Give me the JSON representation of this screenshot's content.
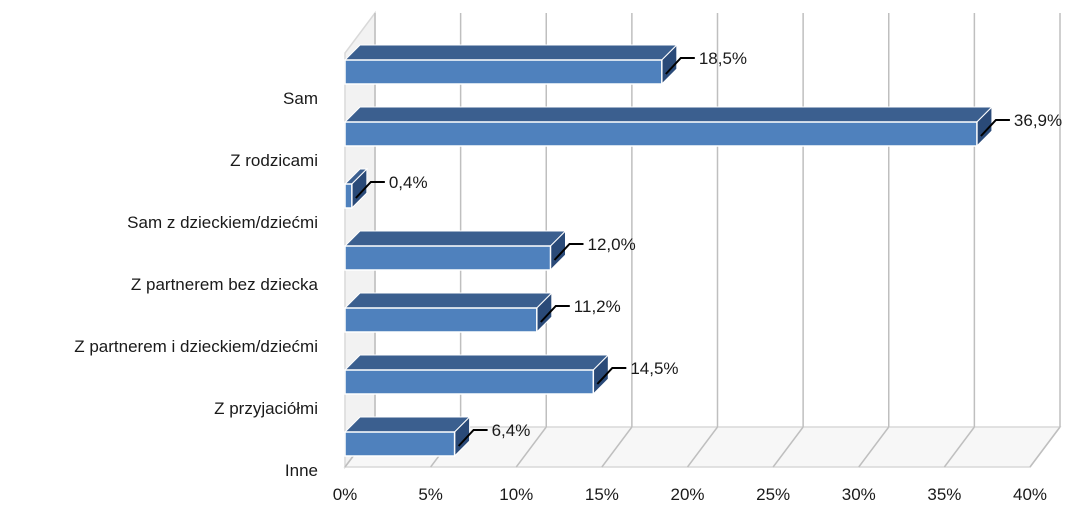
{
  "chart_data": {
    "type": "bar",
    "orientation": "horizontal",
    "three_d": true,
    "categories": [
      "Sam",
      "Z rodzicami",
      "Sam z dzieckiem/dziećmi",
      "Z partnerem bez dziecka",
      "Z partnerem i dzieckiem/dziećmi",
      "Z przyjaciółmi",
      "Inne"
    ],
    "values": [
      18.5,
      36.9,
      0.4,
      12.0,
      11.2,
      14.5,
      6.4
    ],
    "data_labels": [
      "18,5%",
      "36,9%",
      "0,4%",
      "12,0%",
      "11,2%",
      "14,5%",
      "6,4%"
    ],
    "x_ticks": [
      "0%",
      "5%",
      "10%",
      "15%",
      "20%",
      "25%",
      "30%",
      "35%",
      "40%"
    ],
    "xlim": [
      0,
      40
    ],
    "grid": true,
    "legend": "none",
    "colors": {
      "bar_front": "#4f81bd",
      "bar_top": "#3b5f8f",
      "bar_side": "#2a4a78",
      "bar_edge": "#ffffff",
      "grid": "#bfbfbf",
      "wall": "#d9d9d9",
      "leader": "#000000"
    }
  }
}
